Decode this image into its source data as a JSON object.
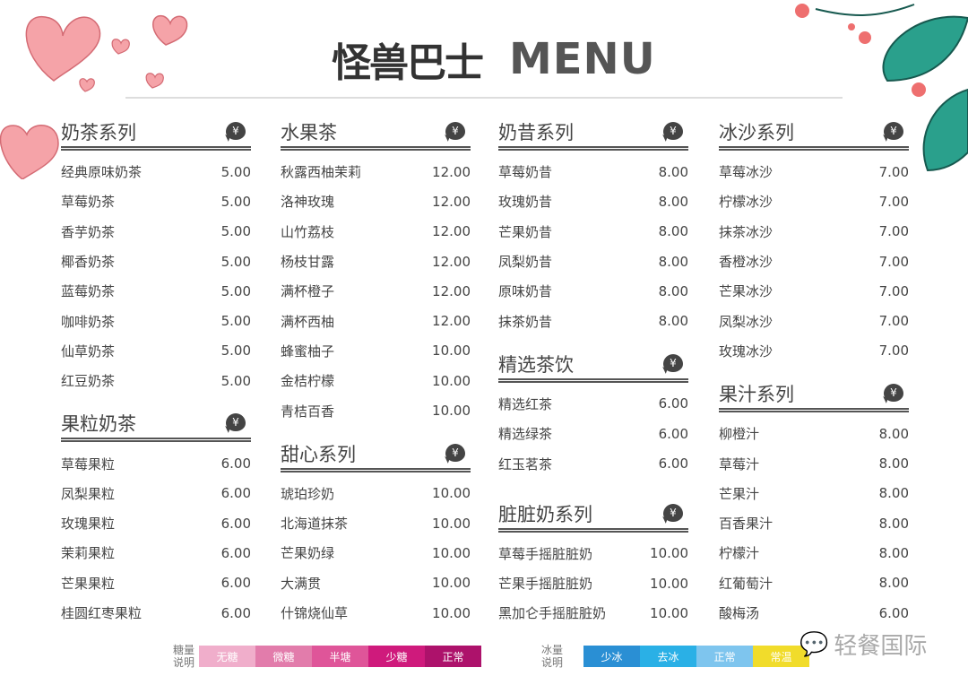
{
  "logo": {
    "brand": "怪兽巴士",
    "menu": "MENU"
  },
  "columns": [
    [
      {
        "title": "奶茶系列",
        "items": [
          [
            "经典原味奶茶",
            "5.00"
          ],
          [
            "草莓奶茶",
            "5.00"
          ],
          [
            "香芋奶茶",
            "5.00"
          ],
          [
            "椰香奶茶",
            "5.00"
          ],
          [
            "蓝莓奶茶",
            "5.00"
          ],
          [
            "咖啡奶茶",
            "5.00"
          ],
          [
            "仙草奶茶",
            "5.00"
          ],
          [
            "红豆奶茶",
            "5.00"
          ]
        ]
      },
      {
        "title": "果粒奶茶",
        "items": [
          [
            "草莓果粒",
            "6.00"
          ],
          [
            "凤梨果粒",
            "6.00"
          ],
          [
            "玫瑰果粒",
            "6.00"
          ],
          [
            "茉莉果粒",
            "6.00"
          ],
          [
            "芒果果粒",
            "6.00"
          ],
          [
            "桂圆红枣果粒",
            "6.00"
          ]
        ]
      }
    ],
    [
      {
        "title": "水果茶",
        "items": [
          [
            "秋露西柚茉莉",
            "12.00"
          ],
          [
            "洛神玫瑰",
            "12.00"
          ],
          [
            "山竹荔枝",
            "12.00"
          ],
          [
            "杨枝甘露",
            "12.00"
          ],
          [
            "满杯橙子",
            "12.00"
          ],
          [
            "满杯西柚",
            "12.00"
          ],
          [
            "蜂蜜柚子",
            "10.00"
          ],
          [
            "金桔柠檬",
            "10.00"
          ],
          [
            "青桔百香",
            "10.00"
          ]
        ]
      },
      {
        "title": "甜心系列",
        "items": [
          [
            "琥珀珍奶",
            "10.00"
          ],
          [
            "北海道抹茶",
            "10.00"
          ],
          [
            "芒果奶绿",
            "10.00"
          ],
          [
            "大满贯",
            "10.00"
          ],
          [
            "什锦烧仙草",
            "10.00"
          ]
        ]
      }
    ],
    [
      {
        "title": "奶昔系列",
        "items": [
          [
            "草莓奶昔",
            "8.00"
          ],
          [
            "玫瑰奶昔",
            "8.00"
          ],
          [
            "芒果奶昔",
            "8.00"
          ],
          [
            "凤梨奶昔",
            "8.00"
          ],
          [
            "原味奶昔",
            "8.00"
          ],
          [
            "抹茶奶昔",
            "8.00"
          ]
        ]
      },
      {
        "title": "精选茶饮",
        "items": [
          [
            "精选红茶",
            "6.00"
          ],
          [
            "精选绿茶",
            "6.00"
          ],
          [
            "红玉茗茶",
            "6.00"
          ]
        ]
      },
      {
        "title": "脏脏奶系列",
        "items": [
          [
            "草莓手摇脏脏奶",
            "10.00"
          ],
          [
            "芒果手摇脏脏奶",
            "10.00"
          ],
          [
            "黑加仑手摇脏脏奶",
            "10.00"
          ]
        ]
      }
    ],
    [
      {
        "title": "冰沙系列",
        "items": [
          [
            "草莓冰沙",
            "7.00"
          ],
          [
            "柠檬冰沙",
            "7.00"
          ],
          [
            "抹茶冰沙",
            "7.00"
          ],
          [
            "香橙冰沙",
            "7.00"
          ],
          [
            "芒果冰沙",
            "7.00"
          ],
          [
            "凤梨冰沙",
            "7.00"
          ],
          [
            "玫瑰冰沙",
            "7.00"
          ]
        ]
      },
      {
        "title": "果汁系列",
        "items": [
          [
            "柳橙汁",
            "8.00"
          ],
          [
            "草莓汁",
            "8.00"
          ],
          [
            "芒果汁",
            "8.00"
          ],
          [
            "百香果汁",
            "8.00"
          ],
          [
            "柠檬汁",
            "8.00"
          ],
          [
            "红葡萄汁",
            "8.00"
          ],
          [
            "酸梅汤",
            "6.00"
          ]
        ]
      }
    ]
  ],
  "currency_symbol": "¥",
  "sugar_legend": {
    "label": "糖量说明",
    "options": [
      {
        "label": "无糖",
        "color": "#f0aecb"
      },
      {
        "label": "微糖",
        "color": "#e27cab"
      },
      {
        "label": "半塘",
        "color": "#df5599"
      },
      {
        "label": "少糖",
        "color": "#cf1a7c"
      },
      {
        "label": "正常",
        "color": "#ad126b"
      }
    ]
  },
  "ice_legend": {
    "label": "冰量说明",
    "options": [
      {
        "label": "少冰",
        "color": "#2a8fd4"
      },
      {
        "label": "去冰",
        "color": "#2ab0e6"
      },
      {
        "label": "正常",
        "color": "#7ec5ee"
      },
      {
        "label": "常温",
        "color": "#f1dc2b"
      }
    ]
  },
  "watermark": "轻餐国际",
  "colors": {
    "heart": "#f4a0a6",
    "leaf": "#2aa08c",
    "flower": "#ee6f6f"
  }
}
